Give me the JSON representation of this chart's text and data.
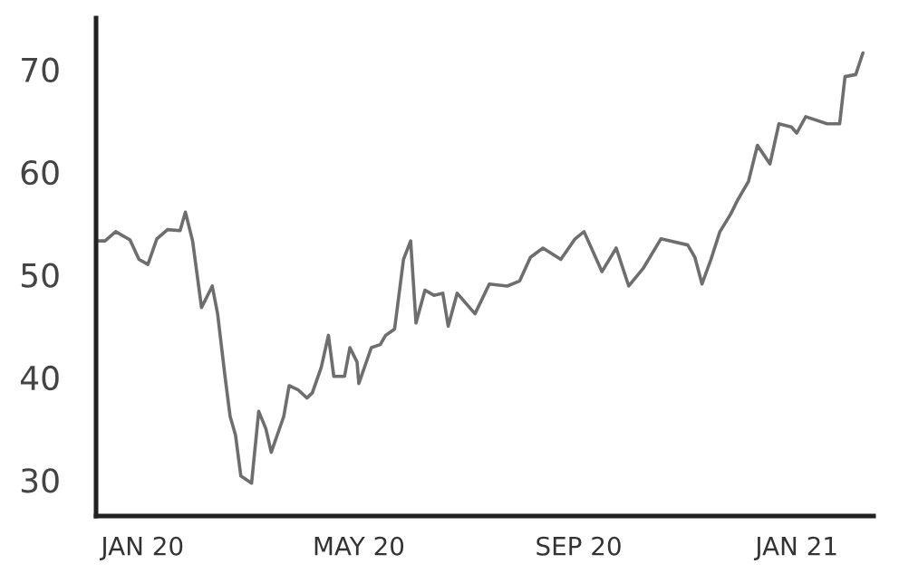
{
  "chart_data": {
    "type": "line",
    "x": [
      "2019-12-07",
      "2019-12-11",
      "2019-12-17",
      "2019-12-25",
      "2019-12-30",
      "2020-01-04",
      "2020-01-09",
      "2020-01-15",
      "2020-01-22",
      "2020-01-25",
      "2020-01-29",
      "2020-02-03",
      "2020-02-09",
      "2020-02-12",
      "2020-02-16",
      "2020-02-19",
      "2020-02-22",
      "2020-02-25",
      "2020-03-02",
      "2020-03-06",
      "2020-03-10",
      "2020-03-13",
      "2020-03-20",
      "2020-03-23",
      "2020-03-28",
      "2020-04-02",
      "2020-04-05",
      "2020-04-10",
      "2020-04-14",
      "2020-04-17",
      "2020-04-23",
      "2020-04-26",
      "2020-04-30",
      "2020-05-01",
      "2020-05-08",
      "2020-05-13",
      "2020-05-16",
      "2020-05-21",
      "2020-05-26",
      "2020-05-30",
      "2020-06-02",
      "2020-06-07",
      "2020-06-12",
      "2020-06-17",
      "2020-06-20",
      "2020-06-25",
      "2020-07-05",
      "2020-07-13",
      "2020-07-23",
      "2020-07-30",
      "2020-08-05",
      "2020-08-12",
      "2020-08-22",
      "2020-08-30",
      "2020-09-04",
      "2020-09-14",
      "2020-09-22",
      "2020-09-29",
      "2020-10-07",
      "2020-10-17",
      "2020-11-01",
      "2020-11-05",
      "2020-11-09",
      "2020-11-14",
      "2020-11-19",
      "2020-11-25",
      "2020-11-29",
      "2020-12-05",
      "2020-12-10",
      "2020-12-17",
      "2020-12-22",
      "2020-12-29",
      "2021-01-01",
      "2021-01-06",
      "2021-01-18",
      "2021-01-25",
      "2021-01-28",
      "2021-02-03",
      "2021-02-07"
    ],
    "series": [
      {
        "color": "#6e6e6e",
        "values": [
          53.3,
          53.3,
          54.2,
          53.4,
          51.5,
          51.0,
          53.5,
          54.4,
          54.3,
          56.1,
          53.3,
          46.8,
          48.9,
          46.2,
          40.3,
          36.2,
          34.4,
          30.4,
          29.7,
          36.7,
          35.0,
          32.7,
          36.2,
          39.2,
          38.8,
          38.0,
          38.5,
          41.0,
          44.1,
          40.1,
          40.1,
          42.9,
          41.5,
          39.4,
          42.9,
          43.2,
          44.1,
          44.7,
          51.5,
          53.3,
          45.3,
          48.5,
          48.0,
          48.2,
          45.0,
          48.2,
          46.2,
          49.1,
          48.9,
          49.4,
          51.7,
          52.6,
          51.5,
          53.5,
          54.2,
          50.3,
          52.6,
          48.9,
          50.6,
          53.5,
          52.9,
          51.7,
          49.1,
          51.5,
          54.2,
          55.9,
          57.3,
          59.1,
          62.6,
          60.8,
          64.7,
          64.4,
          63.8,
          65.4,
          64.7,
          64.7,
          69.3,
          69.5,
          71.6
        ]
      }
    ],
    "xlim": [
      "2019-12-06",
      "2021-02-13"
    ],
    "xticks": [
      {
        "value": "2020-01-01",
        "label": "JAN 20"
      },
      {
        "value": "2020-05-01",
        "label": "MAY 20"
      },
      {
        "value": "2020-09-01",
        "label": "SEP 20"
      },
      {
        "value": "2021-01-01",
        "label": "JAN 21"
      }
    ],
    "ylim": [
      26.5,
      75
    ],
    "yticks": [
      30,
      40,
      50,
      60,
      70
    ],
    "grid": false,
    "marker": "none",
    "line_style": "solid"
  }
}
